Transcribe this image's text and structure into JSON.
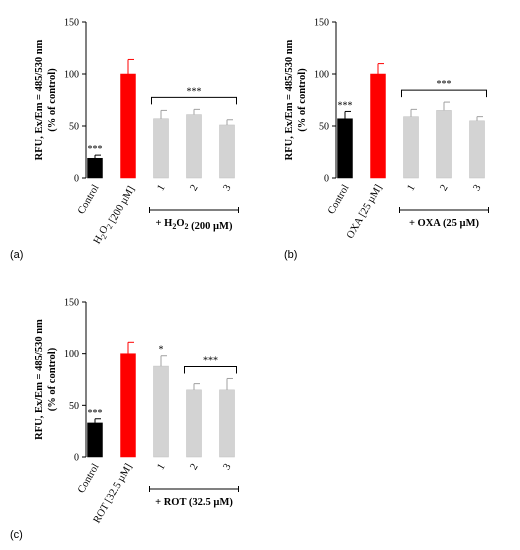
{
  "chart_data": [
    {
      "type": "bar",
      "panel": "(a)",
      "ylabel_line1": "RFU, Ex/Em = 485/530 nm",
      "ylabel_line2": "(% of control)",
      "ylim": [
        0,
        150
      ],
      "yticks": [
        "0",
        "50",
        "100",
        "150"
      ],
      "categories": [
        "Control",
        "H2O2 [200 µM]",
        "1",
        "2",
        "3"
      ],
      "values": [
        19,
        100,
        57,
        61,
        51
      ],
      "errors": [
        3,
        14,
        8,
        5,
        5
      ],
      "colors": [
        "#000000",
        "#ff0000",
        "#d3d3d3",
        "#d3d3d3",
        "#d3d3d3"
      ],
      "significance": [
        "***",
        "",
        "",
        "",
        ""
      ],
      "bracket": {
        "label": "***",
        "from_index": 2,
        "to_index": 4
      },
      "group_label": "+ H2O2 (200 µM)"
    },
    {
      "type": "bar",
      "panel": "(b)",
      "ylabel_line1": "RFU, Ex/Em = 485/530 nm",
      "ylabel_line2": "(% of control)",
      "ylim": [
        0,
        150
      ],
      "yticks": [
        "0",
        "50",
        "100",
        "150"
      ],
      "categories": [
        "Control",
        "OXA [25 µM]",
        "1",
        "2",
        "3"
      ],
      "values": [
        57,
        100,
        59,
        65,
        55
      ],
      "errors": [
        7,
        10,
        7,
        8,
        4
      ],
      "colors": [
        "#000000",
        "#ff0000",
        "#d3d3d3",
        "#d3d3d3",
        "#d3d3d3"
      ],
      "significance": [
        "***",
        "",
        "",
        "",
        ""
      ],
      "bracket": {
        "label": "***",
        "from_index": 2,
        "to_index": 4
      },
      "group_label": "+ OXA (25 µM)"
    },
    {
      "type": "bar",
      "panel": "(c)",
      "ylabel_line1": "RFU, Ex/Em = 485/530 nm",
      "ylabel_line2": "(% of control)",
      "ylim": [
        0,
        150
      ],
      "yticks": [
        "0",
        "50",
        "100",
        "150"
      ],
      "categories": [
        "Control",
        "ROT [32.5 µM]",
        "1",
        "2",
        "3"
      ],
      "values": [
        33,
        100,
        88,
        65,
        65
      ],
      "errors": [
        4,
        11,
        10,
        6,
        11
      ],
      "colors": [
        "#000000",
        "#ff0000",
        "#d3d3d3",
        "#d3d3d3",
        "#d3d3d3"
      ],
      "significance": [
        "***",
        "",
        "*",
        "",
        ""
      ],
      "bracket": {
        "label": "***",
        "from_index": 3,
        "to_index": 4
      },
      "group_label": "+ ROT (32.5 µM)"
    }
  ]
}
